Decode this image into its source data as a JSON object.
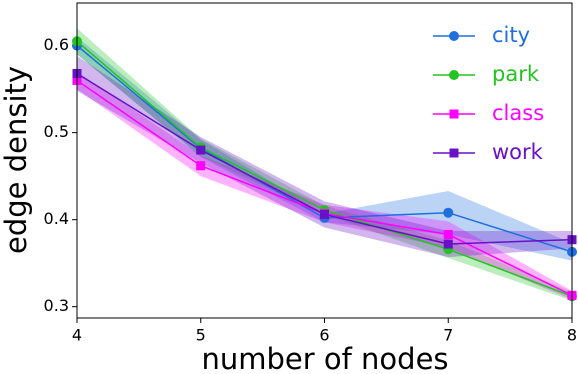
{
  "chart_data": {
    "type": "line",
    "x_label": "number of nodes",
    "y_label": "edge density",
    "x": [
      4,
      5,
      6,
      7,
      8
    ],
    "xlim": [
      4,
      8
    ],
    "xticks": [
      4,
      5,
      6,
      7,
      8
    ],
    "ylim": [
      0.287,
      0.649
    ],
    "yticks": [
      0.3,
      0.4,
      0.5,
      0.6
    ],
    "legend": "upper right",
    "series": [
      {
        "name": "city",
        "color": "#1f6fe0",
        "marker": "circle",
        "values": [
          0.6,
          0.482,
          0.402,
          0.408,
          0.363
        ],
        "lower": [
          0.59,
          0.472,
          0.397,
          0.383,
          0.353
        ],
        "upper": [
          0.61,
          0.492,
          0.407,
          0.433,
          0.373
        ]
      },
      {
        "name": "park",
        "color": "#22c422",
        "marker": "circle",
        "values": [
          0.605,
          0.483,
          0.411,
          0.366,
          0.312
        ],
        "lower": [
          0.59,
          0.473,
          0.406,
          0.356,
          0.307
        ],
        "upper": [
          0.62,
          0.493,
          0.416,
          0.376,
          0.317
        ]
      },
      {
        "name": "class",
        "color": "#ff00ff",
        "marker": "square",
        "values": [
          0.56,
          0.462,
          0.407,
          0.383,
          0.313
        ],
        "lower": [
          0.55,
          0.45,
          0.397,
          0.368,
          0.308
        ],
        "upper": [
          0.57,
          0.474,
          0.417,
          0.398,
          0.318
        ]
      },
      {
        "name": "work",
        "color": "#6a10c8",
        "marker": "square",
        "values": [
          0.568,
          0.48,
          0.406,
          0.372,
          0.377
        ],
        "lower": [
          0.548,
          0.465,
          0.391,
          0.357,
          0.367
        ],
        "upper": [
          0.588,
          0.495,
          0.421,
          0.387,
          0.387
        ]
      }
    ]
  }
}
